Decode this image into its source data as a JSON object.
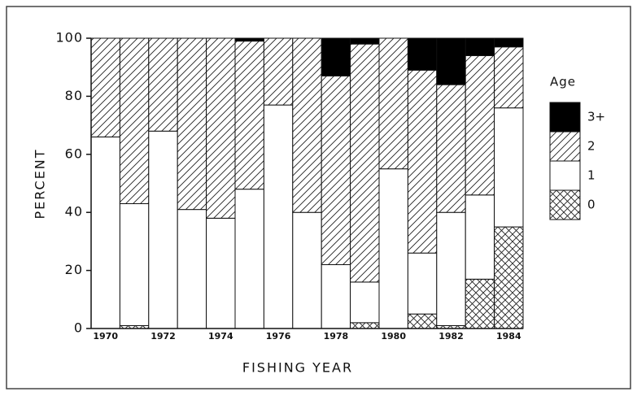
{
  "chart_data": {
    "type": "stacked_bar",
    "x_label": "FISHING YEAR",
    "y_label": "PERCENT",
    "legend_title": "Age",
    "categories": [
      "1970",
      null,
      "1972",
      null,
      "1974",
      null,
      "1976",
      null,
      "1978",
      null,
      "1980",
      null,
      "1982",
      null,
      "1984"
    ],
    "series": [
      {
        "name": "0",
        "color": "#000000",
        "pattern": "crosshatch",
        "values": [
          0,
          1,
          0,
          0,
          0,
          0,
          0,
          0,
          0,
          2,
          0,
          5,
          1,
          17,
          35
        ]
      },
      {
        "name": "1",
        "color": "#ffffff",
        "values": [
          66,
          42,
          68,
          41,
          38,
          48,
          77,
          40,
          22,
          14,
          55,
          21,
          39,
          29,
          41
        ]
      },
      {
        "name": "2",
        "color": "#000000",
        "pattern": "diagonal",
        "values": [
          34,
          57,
          32,
          59,
          62,
          51,
          23,
          60,
          65,
          82,
          45,
          63,
          44,
          48,
          21
        ]
      },
      {
        "name": "3+",
        "color": "#000000",
        "values": [
          0,
          0,
          0,
          0,
          0,
          1,
          0,
          0,
          13,
          2,
          0,
          11,
          16,
          6,
          3
        ]
      }
    ],
    "ylim": [
      0,
      100
    ],
    "yticks": [
      0,
      20,
      40,
      60,
      80,
      100
    ],
    "legend": "right"
  }
}
